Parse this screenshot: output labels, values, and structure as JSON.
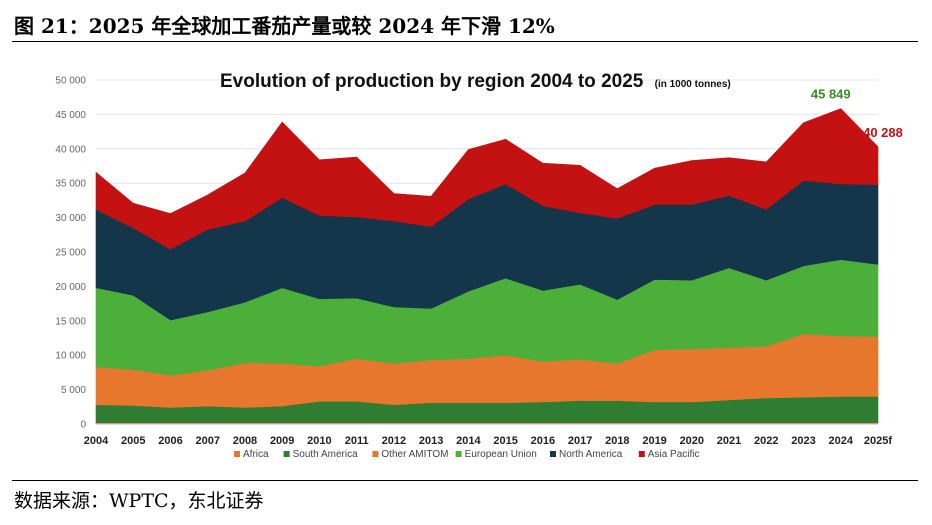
{
  "header": {
    "figure_title": "图 21：2025 年全球加工番茄产量或较 2024 年下滑 12%"
  },
  "footer": {
    "source": "数据来源：WPTC，东北证券"
  },
  "chart_data": {
    "type": "area",
    "stacked": true,
    "title": "Evolution of production by region 2004 to 2025",
    "subtitle": "(in 1000 tonnes)",
    "categories": [
      "2004",
      "2005",
      "2006",
      "2007",
      "2008",
      "2009",
      "2010",
      "2011",
      "2012",
      "2013",
      "2014",
      "2015",
      "2016",
      "2017",
      "2018",
      "2019",
      "2020",
      "2021",
      "2022",
      "2023",
      "2024",
      "2025f"
    ],
    "ylim": [
      0,
      50000
    ],
    "yticks": [
      0,
      5000,
      10000,
      15000,
      20000,
      25000,
      30000,
      35000,
      40000,
      45000,
      50000
    ],
    "ytick_labels": [
      "0",
      "5 000",
      "10 000",
      "15 000",
      "20 000",
      "25 000",
      "30 000",
      "35 000",
      "40 000",
      "45 000",
      "50 000"
    ],
    "grid": true,
    "legend_position": "bottom",
    "series": [
      {
        "name": "Africa",
        "color": "#e8772e",
        "values": [
          200,
          200,
          200,
          200,
          200,
          200,
          200,
          200,
          200,
          200,
          200,
          200,
          200,
          200,
          200,
          200,
          200,
          200,
          200,
          200,
          200,
          200
        ]
      },
      {
        "name": "South America",
        "color": "#2e7d32",
        "values": [
          2600,
          2500,
          2200,
          2400,
          2200,
          2400,
          3100,
          3100,
          2600,
          2900,
          2900,
          2900,
          3000,
          3200,
          3200,
          3000,
          3000,
          3300,
          3600,
          3700,
          3800,
          3800
        ]
      },
      {
        "name": "Other AMITOM",
        "color": "#e8772e",
        "values": [
          5500,
          5200,
          4700,
          5200,
          6500,
          6200,
          5100,
          6200,
          6000,
          6200,
          6400,
          6900,
          5900,
          6000,
          5400,
          7600,
          7700,
          7600,
          7500,
          9200,
          8800,
          8700
        ]
      },
      {
        "name": "European Union",
        "color": "#4caf3a",
        "values": [
          11500,
          10800,
          8000,
          8500,
          8800,
          11000,
          9800,
          8800,
          8200,
          7500,
          9800,
          11200,
          10300,
          10900,
          9300,
          10200,
          10000,
          11600,
          9600,
          9900,
          11100,
          10500
        ]
      },
      {
        "name": "North America",
        "color": "#14364a",
        "values": [
          11400,
          9800,
          10300,
          12000,
          11800,
          13100,
          12100,
          11800,
          12500,
          11900,
          13400,
          13700,
          12300,
          10400,
          11800,
          10900,
          11000,
          10500,
          10300,
          12400,
          11000,
          11600
        ]
      },
      {
        "name": "Asia Pacific",
        "color": "#c41212",
        "values": [
          5400,
          3600,
          5200,
          5000,
          7000,
          11000,
          8100,
          8700,
          4000,
          4400,
          7200,
          6500,
          6200,
          6900,
          4300,
          5300,
          6400,
          5500,
          6900,
          8400,
          10949,
          5488
        ]
      }
    ],
    "annotations": [
      {
        "text": "45 849",
        "category": "2024",
        "value": 45849,
        "color": "#3a8a25"
      },
      {
        "text": "40 288",
        "category": "2025f",
        "value": 40288,
        "color": "#c41212"
      }
    ]
  }
}
